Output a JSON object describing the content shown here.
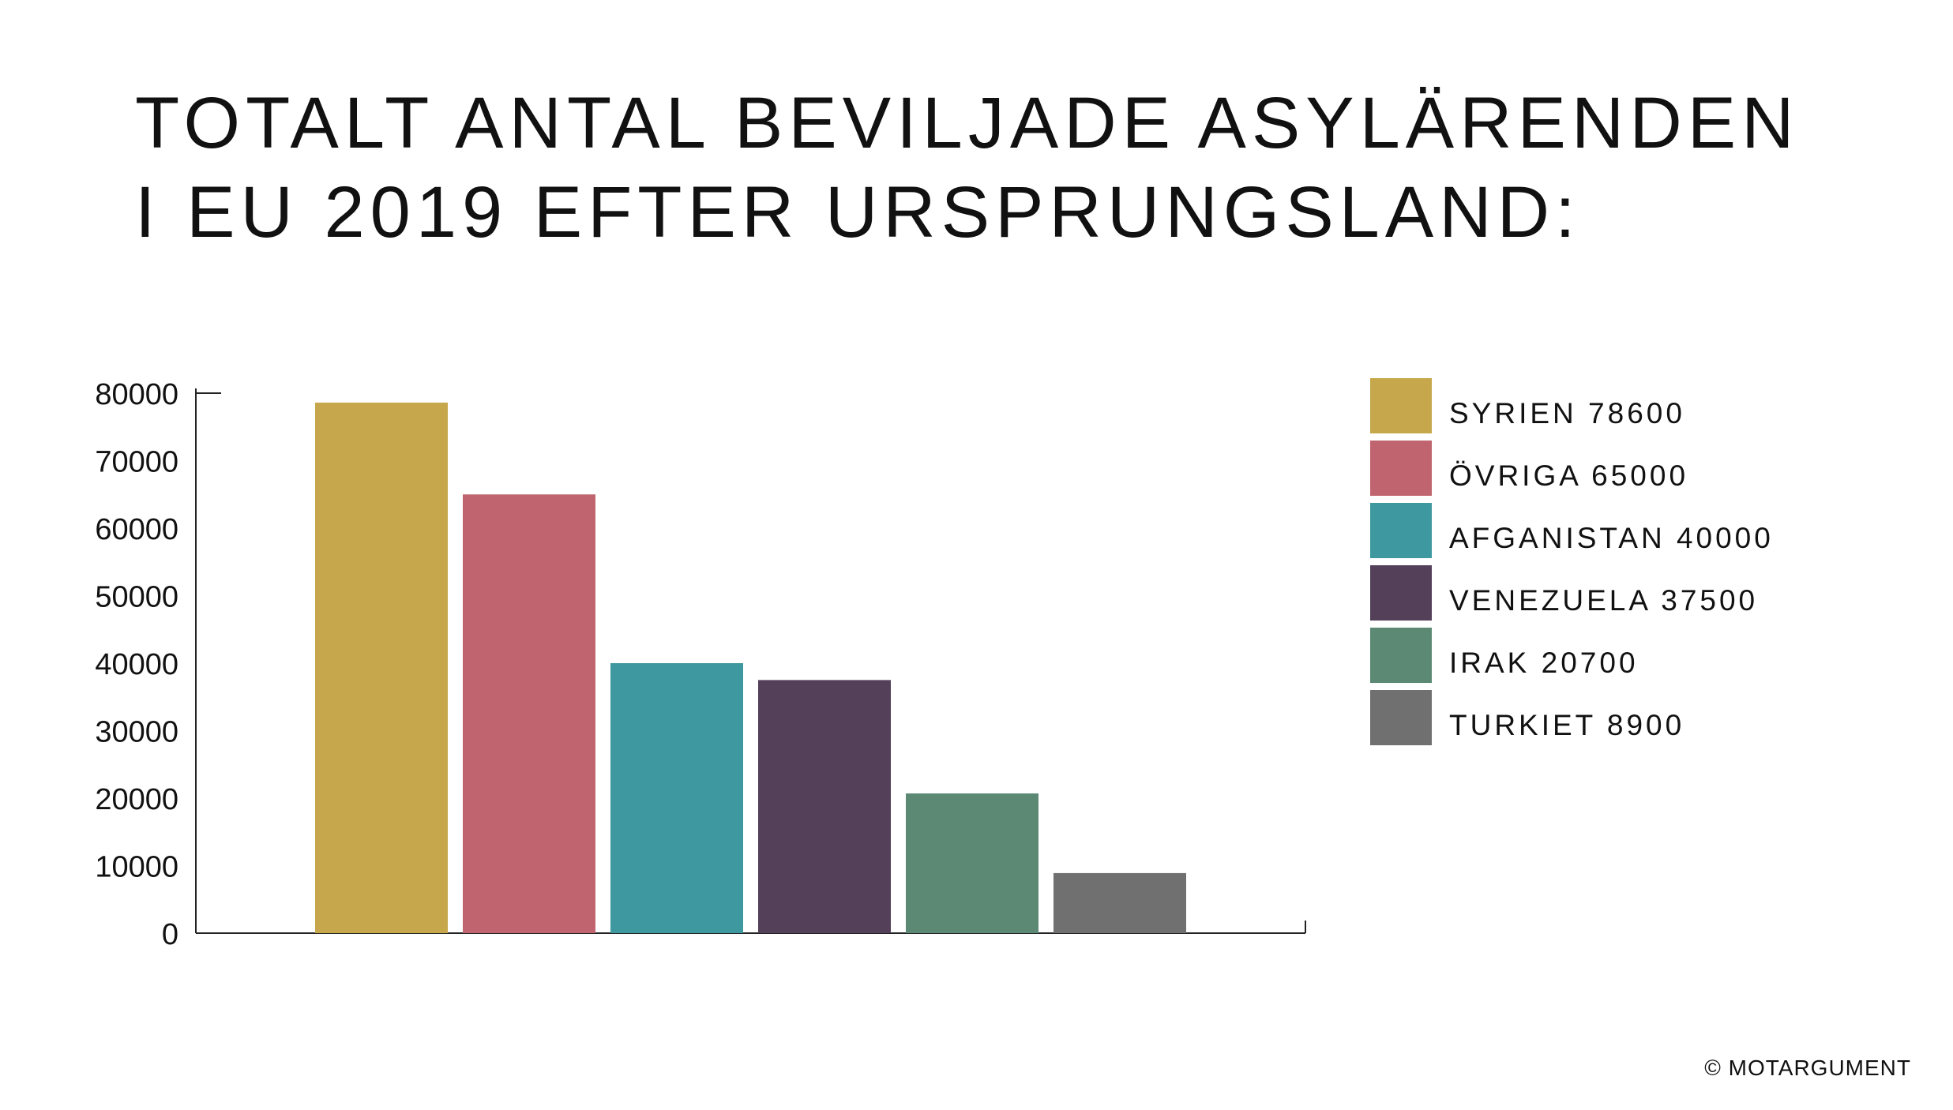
{
  "chart_data": {
    "type": "bar",
    "title": [
      "TOTALT ANTAL BEVILJADE ASYLÄRENDEN",
      "I EU 2019 EFTER URSPRUNGSLAND:"
    ],
    "source": "© MOTARGUMENT",
    "series": [
      {
        "name": "SYRIEN 78600",
        "color": "#c6a74b",
        "values": [
          78600
        ]
      },
      {
        "name": "ÖVRIGA 65000",
        "color": "#c0646f",
        "values": [
          65000
        ]
      },
      {
        "name": "AFGANISTAN 40000",
        "color": "#3e989f",
        "values": [
          40000
        ]
      },
      {
        "name": "VENEZUELA 37500",
        "color": "#544059",
        "values": [
          37500
        ]
      },
      {
        "name": "IRAK 20700",
        "color": "#5c8974",
        "values": [
          20700
        ]
      },
      {
        "name": "TURKIET 8900",
        "color": "#717071",
        "values": [
          8900
        ]
      }
    ],
    "ylim": [
      0,
      80000
    ],
    "yticks": [
      0,
      10000,
      20000,
      30000,
      40000,
      50000,
      60000,
      70000,
      80000
    ]
  }
}
